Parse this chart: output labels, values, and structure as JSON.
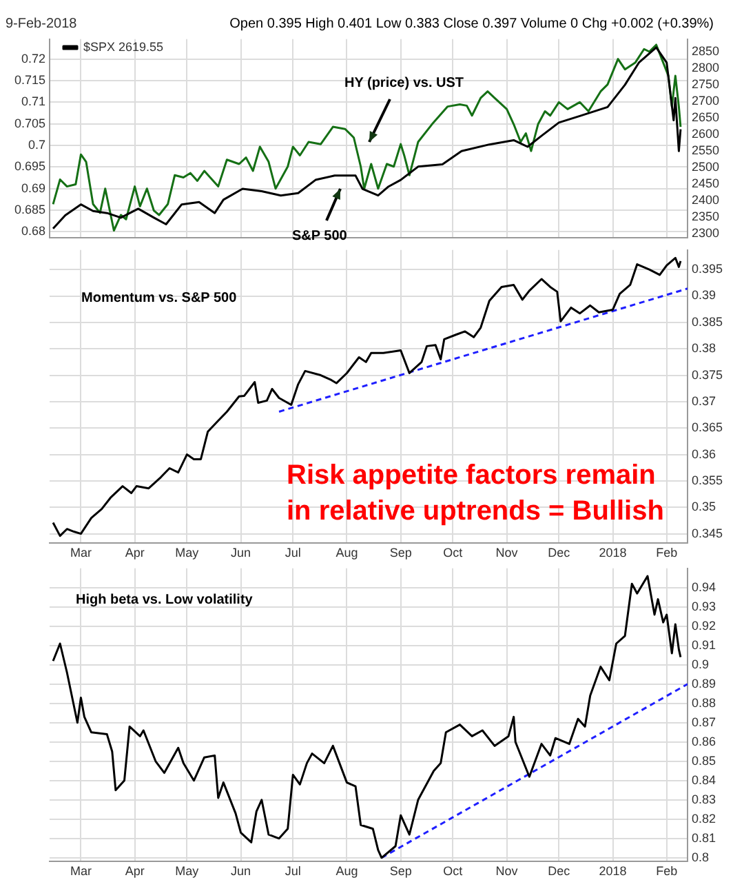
{
  "chart_data": [
    {
      "type": "line",
      "subtitle": "9-Feb-2018",
      "annotations": [
        "Open 0.395  High 0.401  Low 0.383  Close 0.397  Volume 0  Chg +0.002 (+0.39%)",
        "HY (price) vs. UST",
        "S&P 500"
      ],
      "xlim": [
        "2017-02-11",
        "2018-02-13"
      ],
      "xticks": [
        {
          "value": "2017-03-01",
          "label": null
        },
        {
          "value": "2017-04-01",
          "label": null
        },
        {
          "value": "2017-05-01",
          "label": null
        },
        {
          "value": "2017-06-01",
          "label": null
        },
        {
          "value": "2017-07-01",
          "label": null
        },
        {
          "value": "2017-08-01",
          "label": null
        },
        {
          "value": "2017-09-01",
          "label": null
        },
        {
          "value": "2017-10-01",
          "label": null
        },
        {
          "value": "2017-11-01",
          "label": null
        },
        {
          "value": "2017-12-01",
          "label": null
        },
        {
          "value": "2018-01-01",
          "label": null
        },
        {
          "value": "2018-02-01",
          "label": null
        }
      ],
      "ylim": [
        0.6786,
        0.7246
      ],
      "yticks": [
        0.68,
        0.685,
        0.69,
        0.695,
        0.7,
        0.705,
        0.71,
        0.715,
        0.72
      ],
      "y2lim": [
        2288,
        2888
      ],
      "y2ticks": [
        2300,
        2350,
        2400,
        2450,
        2500,
        2550,
        2600,
        2650,
        2700,
        2750,
        2800,
        2850
      ],
      "grid": true,
      "legend": "top left",
      "tick_labels": "y",
      "series": [
        {
          "name": "$SPX 2619.55",
          "color": "#000000",
          "axis": "y2",
          "x": [
            "2017-02-13",
            "2017-02-20",
            "2017-03-01",
            "2017-03-08",
            "2017-03-16",
            "2017-03-24",
            "2017-04-03",
            "2017-04-12",
            "2017-04-19",
            "2017-04-28",
            "2017-05-08",
            "2017-05-17",
            "2017-05-22",
            "2017-06-02",
            "2017-06-13",
            "2017-06-24",
            "2017-07-04",
            "2017-07-14",
            "2017-07-25",
            "2017-08-06",
            "2017-08-10",
            "2017-08-19",
            "2017-08-25",
            "2017-09-01",
            "2017-09-11",
            "2017-09-25",
            "2017-10-06",
            "2017-10-22",
            "2017-11-05",
            "2017-11-13",
            "2017-11-21",
            "2017-12-01",
            "2017-12-13",
            "2017-12-29",
            "2018-01-08",
            "2018-01-16",
            "2018-01-26",
            "2018-02-01",
            "2018-02-05",
            "2018-02-06",
            "2018-02-08",
            "2018-02-09"
          ],
          "values": [
            2316,
            2356,
            2389,
            2369,
            2363,
            2349,
            2376,
            2349,
            2329,
            2389,
            2396,
            2363,
            2403,
            2436,
            2429,
            2416,
            2423,
            2463,
            2476,
            2476,
            2436,
            2416,
            2443,
            2463,
            2503,
            2510,
            2550,
            2570,
            2583,
            2563,
            2596,
            2636,
            2656,
            2683,
            2750,
            2817,
            2863,
            2817,
            2643,
            2710,
            2550,
            2616
          ]
        },
        {
          "color": "#157015",
          "x": [
            "2017-02-13",
            "2017-02-17",
            "2017-02-21",
            "2017-02-26",
            "2017-03-01",
            "2017-03-04",
            "2017-03-08",
            "2017-03-12",
            "2017-03-15",
            "2017-03-20",
            "2017-03-24",
            "2017-03-27",
            "2017-04-01",
            "2017-04-04",
            "2017-04-08",
            "2017-04-12",
            "2017-04-15",
            "2017-04-20",
            "2017-04-24",
            "2017-04-29",
            "2017-05-03",
            "2017-05-07",
            "2017-05-11",
            "2017-05-19",
            "2017-05-24",
            "2017-05-31",
            "2017-06-04",
            "2017-06-08",
            "2017-06-12",
            "2017-06-17",
            "2017-06-21",
            "2017-06-28",
            "2017-07-01",
            "2017-07-05",
            "2017-07-10",
            "2017-07-17",
            "2017-07-24",
            "2017-07-31",
            "2017-08-05",
            "2017-08-09",
            "2017-08-11",
            "2017-08-15",
            "2017-08-19",
            "2017-08-24",
            "2017-08-28",
            "2017-09-01",
            "2017-09-03",
            "2017-09-06",
            "2017-09-11",
            "2017-09-19",
            "2017-09-28",
            "2017-10-05",
            "2017-10-09",
            "2017-10-12",
            "2017-10-17",
            "2017-10-21",
            "2017-10-25",
            "2017-11-01",
            "2017-11-05",
            "2017-11-09",
            "2017-11-12",
            "2017-11-15",
            "2017-11-19",
            "2017-11-23",
            "2017-11-26",
            "2017-12-01",
            "2017-12-06",
            "2017-12-13",
            "2017-12-18",
            "2017-12-25",
            "2017-12-29",
            "2018-01-04",
            "2018-01-08",
            "2018-01-14",
            "2018-01-19",
            "2018-01-22",
            "2018-01-26",
            "2018-01-29",
            "2018-02-02",
            "2018-02-04",
            "2018-02-06",
            "2018-02-08",
            "2018-02-09"
          ],
          "values": [
            0.6864,
            0.6921,
            0.6905,
            0.691,
            0.6979,
            0.6962,
            0.6864,
            0.6844,
            0.69,
            0.6803,
            0.6839,
            0.6829,
            0.6905,
            0.6859,
            0.69,
            0.6849,
            0.6839,
            0.6864,
            0.6931,
            0.6926,
            0.6936,
            0.6918,
            0.6941,
            0.6905,
            0.6967,
            0.6957,
            0.6972,
            0.6941,
            0.6997,
            0.6962,
            0.69,
            0.6951,
            0.6997,
            0.6977,
            0.7008,
            0.7003,
            0.7043,
            0.7038,
            0.7018,
            0.6951,
            0.69,
            0.6957,
            0.69,
            0.6957,
            0.6951,
            0.7003,
            0.6977,
            0.6931,
            0.7008,
            0.7049,
            0.709,
            0.7095,
            0.7092,
            0.7069,
            0.711,
            0.7125,
            0.711,
            0.7084,
            0.7049,
            0.7008,
            0.7028,
            0.6987,
            0.7049,
            0.7079,
            0.7069,
            0.71,
            0.7084,
            0.71,
            0.7079,
            0.7125,
            0.7141,
            0.72,
            0.7176,
            0.7192,
            0.7223,
            0.7217,
            0.7233,
            0.7202,
            0.7161,
            0.709,
            0.7161,
            0.709,
            0.7043
          ]
        }
      ]
    },
    {
      "type": "line",
      "annotations": [
        "Momentum vs. S&P 500",
        "Risk appetite factors remain",
        "in relative uptrends = Bullish"
      ],
      "xlim": [
        "2017-02-11",
        "2018-02-13"
      ],
      "xticks": [
        {
          "value": "2017-03-01",
          "label": "Mar"
        },
        {
          "value": "2017-04-01",
          "label": "Apr"
        },
        {
          "value": "2017-05-01",
          "label": "May"
        },
        {
          "value": "2017-06-01",
          "label": "Jun"
        },
        {
          "value": "2017-07-01",
          "label": "Jul"
        },
        {
          "value": "2017-08-01",
          "label": "Aug"
        },
        {
          "value": "2017-09-01",
          "label": "Sep"
        },
        {
          "value": "2017-10-01",
          "label": "Oct"
        },
        {
          "value": "2017-11-01",
          "label": "Nov"
        },
        {
          "value": "2017-12-01",
          "label": "Dec"
        },
        {
          "value": "2018-01-01",
          "label": "2018"
        },
        {
          "value": "2018-02-01",
          "label": "Feb"
        }
      ],
      "ylim": [
        0.3432,
        0.3987
      ],
      "yticks": [
        0.345,
        0.35,
        0.355,
        0.36,
        0.365,
        0.37,
        0.375,
        0.38,
        0.385,
        0.39,
        0.395
      ],
      "grid": true,
      "series": [
        {
          "color": "#000000",
          "line_style": "solid",
          "x": [
            "2017-02-13",
            "2017-02-17",
            "2017-02-21",
            "2017-02-25",
            "2017-03-01",
            "2017-03-07",
            "2017-03-13",
            "2017-03-18",
            "2017-03-25",
            "2017-03-30",
            "2017-04-02",
            "2017-04-09",
            "2017-04-16",
            "2017-04-21",
            "2017-04-26",
            "2017-05-01",
            "2017-05-05",
            "2017-05-09",
            "2017-05-13",
            "2017-05-19",
            "2017-05-24",
            "2017-05-31",
            "2017-06-03",
            "2017-06-09",
            "2017-06-11",
            "2017-06-16",
            "2017-06-19",
            "2017-06-23",
            "2017-06-30",
            "2017-07-04",
            "2017-07-08",
            "2017-07-17",
            "2017-07-23",
            "2017-07-26",
            "2017-08-01",
            "2017-08-08",
            "2017-08-12",
            "2017-08-15",
            "2017-08-22",
            "2017-09-01",
            "2017-09-06",
            "2017-09-13",
            "2017-09-16",
            "2017-09-21",
            "2017-09-24",
            "2017-09-26",
            "2017-10-03",
            "2017-10-08",
            "2017-10-13",
            "2017-10-17",
            "2017-10-22",
            "2017-10-29",
            "2017-11-05",
            "2017-11-10",
            "2017-11-14",
            "2017-11-21",
            "2017-11-26",
            "2017-11-30",
            "2017-12-02",
            "2017-12-08",
            "2017-12-13",
            "2017-12-19",
            "2017-12-24",
            "2018-01-01",
            "2018-01-05",
            "2018-01-11",
            "2018-01-15",
            "2018-01-22",
            "2018-01-28",
            "2018-02-01",
            "2018-02-06",
            "2018-02-08",
            "2018-02-09"
          ],
          "values": [
            0.3471,
            0.3446,
            0.3459,
            0.3454,
            0.345,
            0.348,
            0.3497,
            0.3518,
            0.354,
            0.3527,
            0.354,
            0.3536,
            0.3557,
            0.3574,
            0.3566,
            0.36,
            0.3591,
            0.3591,
            0.3643,
            0.3664,
            0.3681,
            0.371,
            0.3711,
            0.3737,
            0.3698,
            0.3702,
            0.3724,
            0.3707,
            0.3694,
            0.3733,
            0.3758,
            0.375,
            0.3741,
            0.3735,
            0.3754,
            0.3784,
            0.3775,
            0.3792,
            0.3792,
            0.3797,
            0.3754,
            0.3775,
            0.3805,
            0.3807,
            0.378,
            0.3818,
            0.3827,
            0.3833,
            0.3822,
            0.384,
            0.3891,
            0.3917,
            0.3921,
            0.3893,
            0.391,
            0.3932,
            0.3917,
            0.3908,
            0.3852,
            0.3878,
            0.3867,
            0.3882,
            0.3869,
            0.3874,
            0.3904,
            0.3921,
            0.396,
            0.395,
            0.394,
            0.3958,
            0.3972,
            0.3955,
            0.3966
          ]
        },
        {
          "color": "#1f1fff",
          "line_style": "dashed",
          "x": [
            "2017-06-23",
            "2018-02-13"
          ],
          "values": [
            0.3681,
            0.3914
          ]
        }
      ]
    },
    {
      "type": "line",
      "annotations": [
        "High beta vs. Low volatility"
      ],
      "xlim": [
        "2017-02-11",
        "2018-02-13"
      ],
      "xticks": [
        {
          "value": "2017-03-01",
          "label": "Mar"
        },
        {
          "value": "2017-04-01",
          "label": "Apr"
        },
        {
          "value": "2017-05-01",
          "label": "May"
        },
        {
          "value": "2017-06-01",
          "label": "Jun"
        },
        {
          "value": "2017-07-01",
          "label": "Jul"
        },
        {
          "value": "2017-08-01",
          "label": "Aug"
        },
        {
          "value": "2017-09-01",
          "label": "Sep"
        },
        {
          "value": "2017-10-01",
          "label": "Oct"
        },
        {
          "value": "2017-11-01",
          "label": "Nov"
        },
        {
          "value": "2017-12-01",
          "label": "Dec"
        },
        {
          "value": "2018-01-01",
          "label": "2018"
        },
        {
          "value": "2018-02-01",
          "label": "Feb"
        }
      ],
      "ylim": [
        0.798,
        0.95
      ],
      "yticks": [
        0.8,
        0.81,
        0.82,
        0.83,
        0.84,
        0.85,
        0.86,
        0.87,
        0.88,
        0.89,
        0.9,
        0.91,
        0.92,
        0.93,
        0.94
      ],
      "grid": true,
      "series": [
        {
          "color": "#000000",
          "line_style": "solid",
          "x": [
            "2017-02-13",
            "2017-02-17",
            "2017-02-21",
            "2017-02-27",
            "2017-03-01",
            "2017-03-03",
            "2017-03-07",
            "2017-03-16",
            "2017-03-19",
            "2017-03-21",
            "2017-03-26",
            "2017-03-29",
            "2017-04-04",
            "2017-04-06",
            "2017-04-13",
            "2017-04-18",
            "2017-04-26",
            "2017-04-29",
            "2017-05-05",
            "2017-05-11",
            "2017-05-17",
            "2017-05-19",
            "2017-05-22",
            "2017-05-29",
            "2017-06-01",
            "2017-06-07",
            "2017-06-10",
            "2017-06-13",
            "2017-06-17",
            "2017-06-23",
            "2017-06-28",
            "2017-07-01",
            "2017-07-05",
            "2017-07-09",
            "2017-07-12",
            "2017-07-19",
            "2017-07-24",
            "2017-08-01",
            "2017-08-06",
            "2017-08-09",
            "2017-08-16",
            "2017-08-19",
            "2017-08-21",
            "2017-08-29",
            "2017-09-01",
            "2017-09-06",
            "2017-09-11",
            "2017-09-20",
            "2017-09-24",
            "2017-09-27",
            "2017-10-05",
            "2017-10-12",
            "2017-10-18",
            "2017-10-25",
            "2017-11-02",
            "2017-11-05",
            "2017-11-06",
            "2017-11-14",
            "2017-11-21",
            "2017-11-26",
            "2017-11-29",
            "2017-12-07",
            "2017-12-12",
            "2017-12-16",
            "2017-12-19",
            "2017-12-25",
            "2017-12-30",
            "2018-01-03",
            "2018-01-08",
            "2018-01-12",
            "2018-01-15",
            "2018-01-21",
            "2018-01-25",
            "2018-01-27",
            "2018-01-30",
            "2018-02-01",
            "2018-02-04",
            "2018-02-06",
            "2018-02-08",
            "2018-02-09"
          ],
          "values": [
            0.902,
            0.911,
            0.896,
            0.87,
            0.883,
            0.873,
            0.865,
            0.864,
            0.855,
            0.835,
            0.84,
            0.868,
            0.863,
            0.866,
            0.85,
            0.844,
            0.857,
            0.849,
            0.84,
            0.852,
            0.853,
            0.831,
            0.839,
            0.823,
            0.813,
            0.808,
            0.824,
            0.83,
            0.812,
            0.81,
            0.815,
            0.843,
            0.838,
            0.849,
            0.854,
            0.849,
            0.858,
            0.839,
            0.837,
            0.817,
            0.815,
            0.804,
            0.8,
            0.806,
            0.822,
            0.812,
            0.83,
            0.845,
            0.849,
            0.865,
            0.869,
            0.863,
            0.866,
            0.858,
            0.863,
            0.873,
            0.86,
            0.842,
            0.859,
            0.853,
            0.862,
            0.859,
            0.872,
            0.868,
            0.884,
            0.899,
            0.892,
            0.911,
            0.915,
            0.942,
            0.937,
            0.946,
            0.926,
            0.934,
            0.922,
            0.926,
            0.906,
            0.921,
            0.908,
            0.904
          ]
        },
        {
          "color": "#1f1fff",
          "line_style": "dashed",
          "x": [
            "2017-08-21",
            "2018-02-13"
          ],
          "values": [
            0.8,
            0.89
          ]
        }
      ]
    }
  ]
}
